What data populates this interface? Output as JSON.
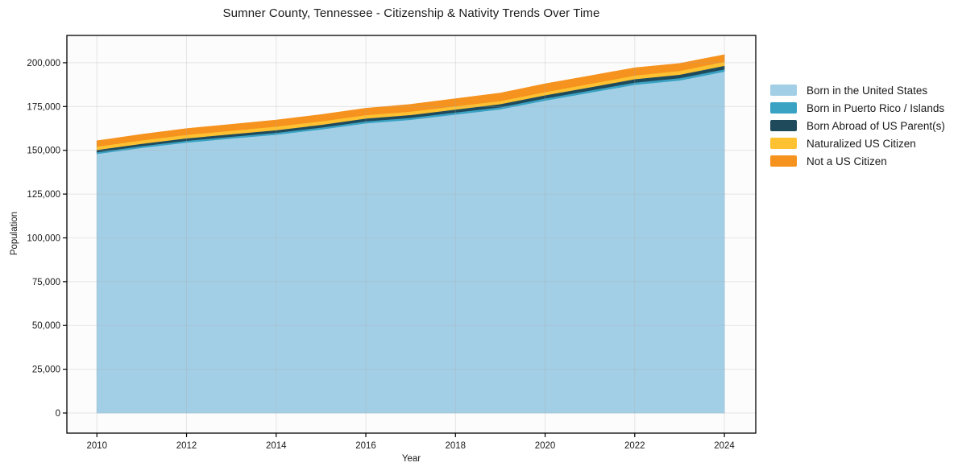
{
  "figure": {
    "title": "Sumner County, Tennessee - Citizenship & Nativity Trends Over Time"
  },
  "chart_data": {
    "type": "area",
    "stacked": true,
    "title": "Sumner County, Tennessee - Citizenship & Nativity Trends Over Time",
    "xlabel": "Year",
    "ylabel": "Population",
    "x": [
      2010,
      2011,
      2012,
      2013,
      2014,
      2015,
      2016,
      2017,
      2018,
      2019,
      2020,
      2021,
      2022,
      2023,
      2024
    ],
    "series": [
      {
        "name": "Born in the United States",
        "color": "#a3cfe6",
        "values": [
          148000,
          151500,
          154500,
          156800,
          159000,
          162000,
          165500,
          167500,
          170500,
          173500,
          178500,
          183000,
          187500,
          190000,
          195000
        ]
      },
      {
        "name": "Born in Puerto Rico / Islands",
        "color": "#3aa2c3",
        "values": [
          1000,
          1000,
          1050,
          1050,
          1100,
          1100,
          1150,
          1150,
          1200,
          1200,
          1250,
          1250,
          1300,
          1300,
          1350
        ]
      },
      {
        "name": "Born Abroad of US Parent(s)",
        "color": "#1f4a5c",
        "values": [
          1300,
          1350,
          1400,
          1450,
          1500,
          1550,
          1600,
          1650,
          1700,
          1750,
          1800,
          1850,
          1900,
          1950,
          2000
        ]
      },
      {
        "name": "Naturalized US Citizen",
        "color": "#fdc132",
        "values": [
          1900,
          1950,
          2000,
          2000,
          2050,
          2000,
          1950,
          1900,
          1850,
          1800,
          1800,
          1900,
          2100,
          2200,
          2300
        ]
      },
      {
        "name": "Not a US Citizen",
        "color": "#f6921e",
        "values": [
          3200,
          3300,
          3400,
          3500,
          3600,
          3700,
          3800,
          4000,
          4200,
          4400,
          4600,
          4500,
          4300,
          4100,
          3900
        ]
      }
    ],
    "x_ticks": [
      2010,
      2012,
      2014,
      2016,
      2018,
      2020,
      2022,
      2024
    ],
    "y_ticks": [
      0,
      25000,
      50000,
      75000,
      100000,
      125000,
      150000,
      175000,
      200000
    ],
    "x_range": [
      2009.33,
      2024.7
    ],
    "y_range": [
      -11500,
      215600
    ],
    "legend_position": "right",
    "grid": true,
    "axis_color": "#000000",
    "tick_label_color": "#1a1a1a",
    "grid_color": "rgba(170,170,170,0.28)",
    "plot_background": "#fcfcfc"
  }
}
